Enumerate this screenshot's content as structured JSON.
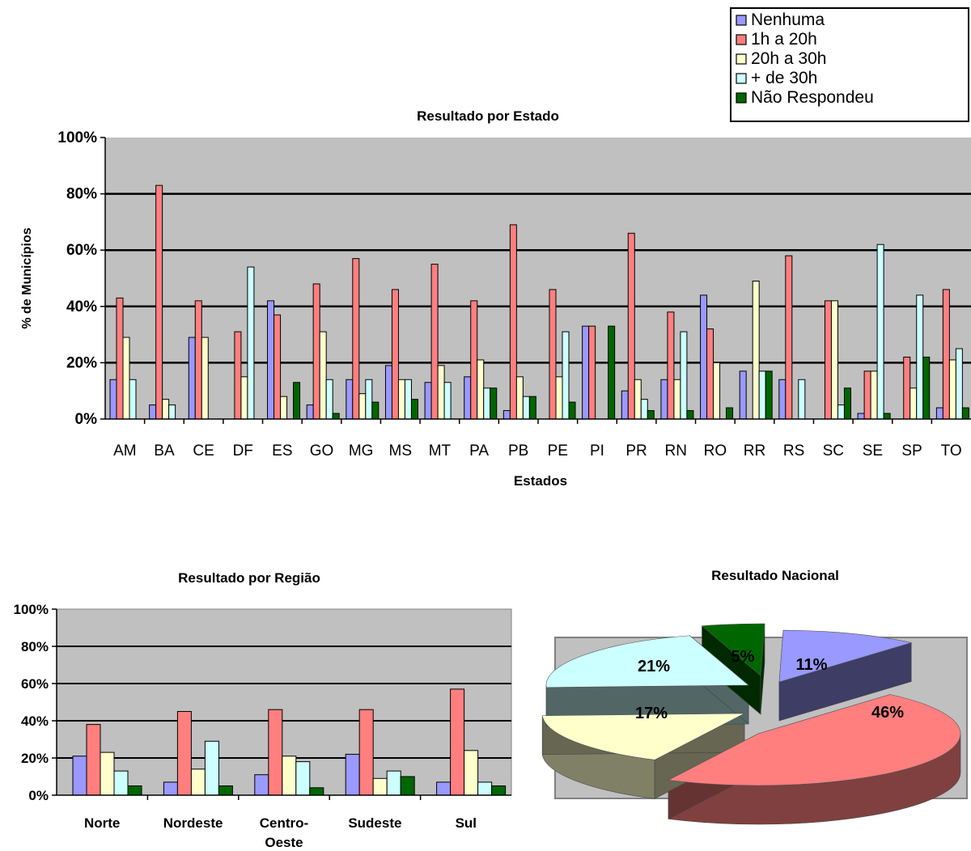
{
  "legend": {
    "items": [
      {
        "label": "Nenhuma",
        "color": "#9999ff"
      },
      {
        "label": "1h a 20h",
        "color": "#ff7f7f"
      },
      {
        "label": "20h a 30h",
        "color": "#ffffcc"
      },
      {
        "label": "+ de 30h",
        "color": "#ccffff"
      },
      {
        "label": "Não Respondeu",
        "color": "#006600"
      }
    ]
  },
  "chart_data": [
    {
      "type": "bar",
      "title": "Resultado por Estado",
      "xlabel": "Estados",
      "ylabel": "% de Municípios",
      "ylim": [
        0,
        100
      ],
      "yticks": [
        "0%",
        "20%",
        "40%",
        "60%",
        "80%",
        "100%"
      ],
      "grid": true,
      "categories": [
        "AM",
        "BA",
        "CE",
        "DF",
        "ES",
        "GO",
        "MG",
        "MS",
        "MT",
        "PA",
        "PB",
        "PE",
        "PI",
        "PR",
        "RN",
        "RO",
        "RR",
        "RS",
        "SC",
        "SE",
        "SP",
        "TO"
      ],
      "series": [
        {
          "name": "Nenhuma",
          "values": [
            14,
            5,
            29,
            0,
            42,
            5,
            14,
            19,
            13,
            15,
            3,
            0,
            33,
            10,
            14,
            44,
            17,
            14,
            0,
            2,
            0,
            4
          ]
        },
        {
          "name": "1h a 20h",
          "values": [
            43,
            83,
            42,
            31,
            37,
            48,
            57,
            46,
            55,
            42,
            69,
            46,
            33,
            66,
            38,
            32,
            0,
            58,
            42,
            17,
            22,
            46
          ]
        },
        {
          "name": "20h a 30h",
          "values": [
            29,
            7,
            29,
            15,
            8,
            31,
            9,
            14,
            19,
            21,
            15,
            15,
            0,
            14,
            14,
            20,
            49,
            0,
            42,
            17,
            11,
            21
          ]
        },
        {
          "name": "+ de 30h",
          "values": [
            14,
            5,
            0,
            54,
            0,
            14,
            14,
            14,
            13,
            11,
            8,
            31,
            0,
            7,
            31,
            0,
            17,
            14,
            5,
            62,
            44,
            25
          ]
        },
        {
          "name": "Não Respondeu",
          "values": [
            0,
            0,
            0,
            0,
            13,
            2,
            6,
            7,
            0,
            11,
            8,
            6,
            33,
            3,
            3,
            4,
            17,
            0,
            11,
            2,
            22,
            4
          ]
        }
      ]
    },
    {
      "type": "bar",
      "title": "Resultado por Região",
      "ylim": [
        0,
        100
      ],
      "yticks": [
        "0%",
        "20%",
        "40%",
        "60%",
        "80%",
        "100%"
      ],
      "grid": true,
      "categories": [
        [
          "Norte"
        ],
        [
          "Nordeste"
        ],
        [
          "Centro-",
          "Oeste"
        ],
        [
          "Sudeste"
        ],
        [
          "Sul"
        ]
      ],
      "series": [
        {
          "name": "Nenhuma",
          "values": [
            21,
            7,
            11,
            22,
            7
          ]
        },
        {
          "name": "1h a 20h",
          "values": [
            38,
            45,
            46,
            46,
            57
          ]
        },
        {
          "name": "20h a 30h",
          "values": [
            23,
            14,
            21,
            9,
            24
          ]
        },
        {
          "name": "+ de 30h",
          "values": [
            13,
            29,
            18,
            13,
            7
          ]
        },
        {
          "name": "Não Respondeu",
          "values": [
            5,
            5,
            4,
            10,
            5
          ]
        }
      ]
    },
    {
      "type": "pie",
      "title": "Resultado Nacional",
      "slices": [
        {
          "name": "Nenhuma",
          "value": 11,
          "label": "11%"
        },
        {
          "name": "1h a 20h",
          "value": 46,
          "label": "46%"
        },
        {
          "name": "20h a 30h",
          "value": 17,
          "label": "17%"
        },
        {
          "name": "+ de 30h",
          "value": 21,
          "label": "21%"
        },
        {
          "name": "Não Respondeu",
          "value": 5,
          "label": "5%"
        }
      ]
    }
  ]
}
